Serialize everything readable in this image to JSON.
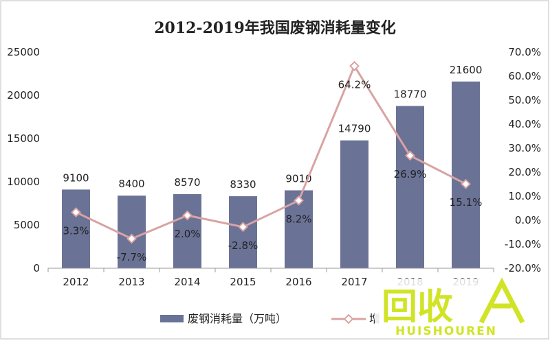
{
  "chart_data": {
    "type": "bar",
    "title": "2012-2019年我国废钢消耗量变化",
    "categories": [
      "2012",
      "2013",
      "2014",
      "2015",
      "2016",
      "2017",
      "2018",
      "2019"
    ],
    "series": [
      {
        "name": "废钢消耗量（万吨）",
        "type": "bar",
        "axis": "left",
        "values": [
          9100,
          8400,
          8570,
          8330,
          9010,
          14790,
          18770,
          21600
        ],
        "labels": [
          "9100",
          "8400",
          "8570",
          "8330",
          "9010",
          "14790",
          "18770",
          "21600"
        ],
        "color": "#6a7296"
      },
      {
        "name": "增",
        "type": "line",
        "axis": "right",
        "values": [
          3.3,
          -7.7,
          2.0,
          -2.8,
          8.2,
          64.2,
          26.9,
          15.1
        ],
        "labels": [
          "3.3%",
          "-7.7%",
          "2.0%",
          "-2.8%",
          "8.2%",
          "64.2%",
          "26.9%",
          "15.1%"
        ],
        "color": "#d9a3a3"
      }
    ],
    "y_left": {
      "range": [
        0,
        25000
      ],
      "ticks": [
        "0",
        "5000",
        "10000",
        "15000",
        "20000",
        "25000"
      ]
    },
    "y_right": {
      "range": [
        -20,
        70
      ],
      "ticks": [
        "-20.0%",
        "-10.0%",
        "0.0%",
        "10.0%",
        "20.0%",
        "30.0%",
        "40.0%",
        "50.0%",
        "60.0%",
        "70.0%"
      ]
    },
    "grid": false,
    "legend_position": "bottom"
  },
  "watermark": {
    "main": "回收",
    "sub": "HUISHOUREN",
    "color": "#c8e000"
  }
}
